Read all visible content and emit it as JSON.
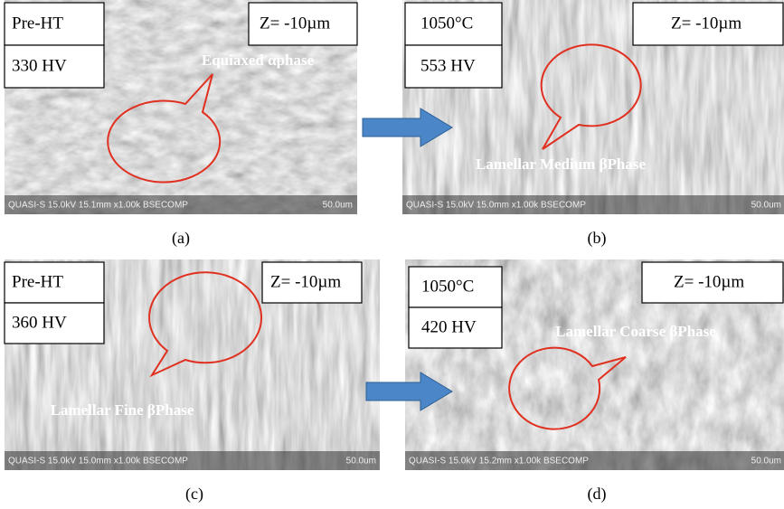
{
  "panels": [
    {
      "condition": "Pre-HT",
      "hardness": "330 HV",
      "depth": "Z= -10µm",
      "annotation": "Equiaxed αphase",
      "sem_info": "QUASI-S 15.0kV 15.1mm x1.00k BSECOMP",
      "scale": "50.0um",
      "caption": "(a)"
    },
    {
      "condition": "1050°C",
      "hardness": "553 HV",
      "depth": "Z= -10µm",
      "annotation": "Lamellar Medium βPhase",
      "sem_info": "QUASI-S 15.0kV 15.0mm x1.00k BSECOMP",
      "scale": "50.0um",
      "caption": "(b)"
    },
    {
      "condition": "Pre-HT",
      "hardness": "360 HV",
      "depth": "Z= -10µm",
      "annotation": "Lamellar Fine βPhase",
      "sem_info": "QUASI-S 15.0kV 15.0mm x1.00k BSECOMP",
      "scale": "50.0um",
      "caption": "(c)"
    },
    {
      "condition": "1050°C",
      "hardness": "420 HV",
      "depth": "Z= -10µm",
      "annotation": "Lamellar Coarse βPhase",
      "sem_info": "QUASI-S 15.0kV 15.2mm x1.00k BSECOMP",
      "scale": "50.0um",
      "caption": "(d)"
    }
  ]
}
